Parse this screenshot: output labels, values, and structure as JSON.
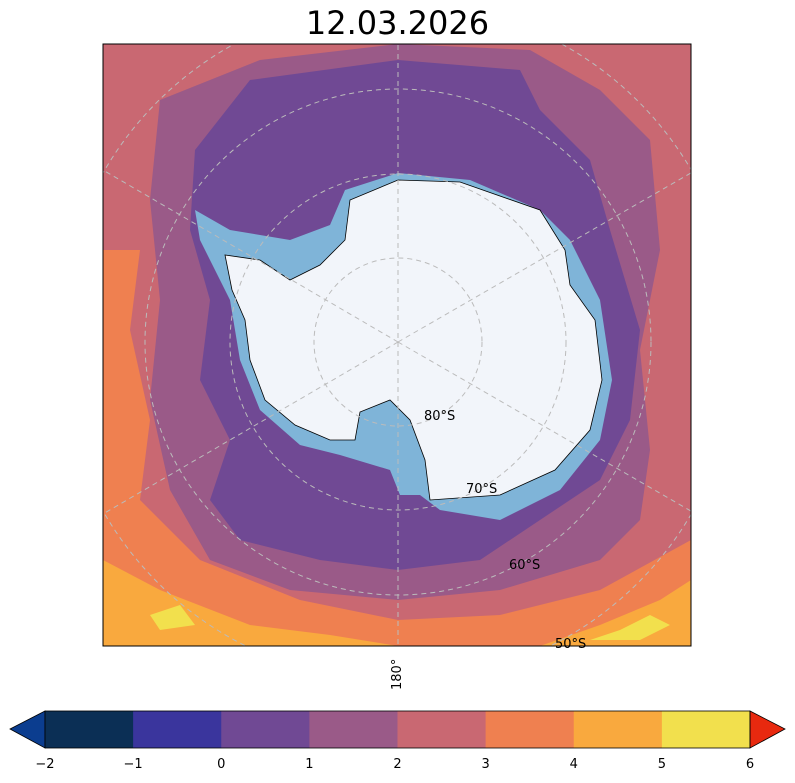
{
  "title": "12.03.2026",
  "map": {
    "projection": "south-polar-stereographic",
    "latitude_labels": [
      "80°S",
      "70°S",
      "60°S",
      "50°S"
    ],
    "longitude_label": "180°",
    "colors": {
      "ice": "#7fb4d8",
      "land": "#f2f5fa"
    }
  },
  "colorbar": {
    "ticks": [
      "−2",
      "−1",
      "0",
      "1",
      "2",
      "3",
      "4",
      "5",
      "6"
    ],
    "colors": [
      "#0b2f55",
      "#3a359d",
      "#704994",
      "#9a5a88",
      "#c96872",
      "#ef8050",
      "#f9a93e",
      "#f2e04d"
    ],
    "under_color": "#0b3d8f",
    "over_color": "#e8290f",
    "extend": "both"
  }
}
